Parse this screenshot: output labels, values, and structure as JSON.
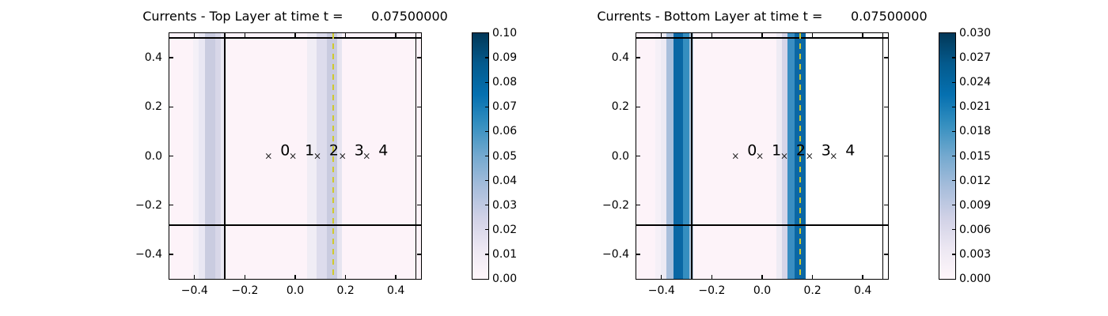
{
  "figure": {
    "background": "#ffffff"
  },
  "colors": {
    "plot_background_low_value": "#fdf3f9",
    "white_region": "#ffffff",
    "frame": "#000000",
    "barrier": "#000000",
    "dashed_line": "#d0ca2c",
    "marker": "#1c1c1c",
    "colormap_stops": [
      "#fff7fb",
      "#ece7f2",
      "#d0d1e6",
      "#a6bddb",
      "#74a9cf",
      "#3690c0",
      "#0570b0",
      "#045a8d",
      "#023858"
    ]
  },
  "layout_hints": {
    "gauge_label_dx": 0.066,
    "gauge_label_dy": 0.02,
    "legend_position": "colorbar-right",
    "grid": "off"
  },
  "chart_data": [
    {
      "type": "heatmap",
      "title": "Currents - Top Layer at time t =       0.07500000",
      "xlim": [
        -0.5,
        0.5
      ],
      "ylim": [
        -0.5,
        0.5
      ],
      "x_tick_values": [
        -0.4,
        -0.2,
        0.0,
        0.2,
        0.4
      ],
      "x_tick_labels": [
        "−0.4",
        "−0.2",
        "0.0",
        "0.2",
        "0.4"
      ],
      "y_tick_values": [
        0.4,
        0.2,
        0.0,
        -0.2,
        -0.4
      ],
      "y_tick_labels": [
        "0.4",
        "0.2",
        "0.0",
        "−0.2",
        "−0.4"
      ],
      "colorbar": {
        "vmin": 0.0,
        "vmax": 0.1,
        "tick_step": 0.01,
        "tick_labels_top_to_bottom": [
          "0.10",
          "0.09",
          "0.08",
          "0.07",
          "0.06",
          "0.05",
          "0.04",
          "0.03",
          "0.02",
          "0.01",
          "0.00"
        ]
      },
      "background_value": 0.0,
      "bands": [
        {
          "description": "current band centered near x=-0.34, peak value ~0.02",
          "stops": [
            [
              -0.405,
              -0.385,
              "#f4f0f7"
            ],
            [
              -0.385,
              -0.358,
              "#e9e7f3"
            ],
            [
              -0.358,
              -0.318,
              "#cacce0"
            ],
            [
              -0.318,
              -0.296,
              "#d8d7e8"
            ],
            [
              -0.296,
              -0.278,
              "#eae8f3"
            ]
          ]
        },
        {
          "description": "current band centered near x=0.14, peak value ~0.022",
          "stops": [
            [
              0.048,
              0.085,
              "#f0edf5"
            ],
            [
              0.085,
              0.125,
              "#dddcec"
            ],
            [
              0.125,
              0.168,
              "#c9cbdf"
            ],
            [
              0.168,
              0.186,
              "#e6e4f0"
            ]
          ]
        }
      ],
      "white_region": null,
      "lines": {
        "vertical_barrier_x": -0.28,
        "vertical_right_x": 0.48,
        "horizontal_barrier_y": -0.28,
        "horizontal_top_y": 0.48,
        "dashed_vertical_x": 0.15
      },
      "gauges": [
        {
          "label": "0",
          "x": -0.106,
          "y": 0.0
        },
        {
          "label": "1",
          "x": -0.009,
          "y": 0.0
        },
        {
          "label": "2",
          "x": 0.088,
          "y": 0.0
        },
        {
          "label": "3",
          "x": 0.188,
          "y": 0.0
        },
        {
          "label": "4",
          "x": 0.284,
          "y": 0.0
        }
      ]
    },
    {
      "type": "heatmap",
      "title": "Currents - Bottom Layer at time t =       0.07500000",
      "xlim": [
        -0.5,
        0.5
      ],
      "ylim": [
        -0.5,
        0.5
      ],
      "x_tick_values": [
        -0.4,
        -0.2,
        0.0,
        0.2,
        0.4
      ],
      "x_tick_labels": [
        "−0.4",
        "−0.2",
        "0.0",
        "0.2",
        "0.4"
      ],
      "y_tick_values": [
        0.4,
        0.2,
        0.0,
        -0.2,
        -0.4
      ],
      "y_tick_labels": [
        "0.4",
        "0.2",
        "0.0",
        "−0.2",
        "−0.4"
      ],
      "colorbar": {
        "vmin": 0.0,
        "vmax": 0.03,
        "tick_step": 0.003,
        "tick_labels_top_to_bottom": [
          "0.030",
          "0.027",
          "0.024",
          "0.021",
          "0.018",
          "0.015",
          "0.012",
          "0.009",
          "0.006",
          "0.003",
          "0.000"
        ]
      },
      "background_value": 0.0,
      "bands": [
        {
          "description": "strong current band centered near x=-0.33, peak value ~0.027",
          "stops": [
            [
              -0.425,
              -0.402,
              "#f5f0f7"
            ],
            [
              -0.402,
              -0.381,
              "#edeaf4"
            ],
            [
              -0.381,
              -0.352,
              "#a9bfdc"
            ],
            [
              -0.352,
              -0.313,
              "#0a67a4"
            ],
            [
              -0.313,
              -0.288,
              "#358ec0"
            ],
            [
              -0.288,
              -0.272,
              "#aec6de"
            ]
          ]
        },
        {
          "description": "strong current band centered near x=0.14, peak value ~0.028",
          "stops": [
            [
              0.058,
              0.078,
              "#eeebf4"
            ],
            [
              0.078,
              0.1,
              "#d6d5e8"
            ],
            [
              0.1,
              0.13,
              "#3a8ec2"
            ],
            [
              0.13,
              0.172,
              "#0b67a4"
            ]
          ]
        }
      ],
      "white_region": [
        0.172,
        0.5
      ],
      "lines": {
        "vertical_barrier_x": -0.28,
        "vertical_right_x": 0.48,
        "horizontal_barrier_y": -0.28,
        "horizontal_top_y": 0.48,
        "dashed_vertical_x": 0.15
      },
      "gauges": [
        {
          "label": "0",
          "x": -0.106,
          "y": 0.0
        },
        {
          "label": "1",
          "x": -0.009,
          "y": 0.0
        },
        {
          "label": "2",
          "x": 0.088,
          "y": 0.0
        },
        {
          "label": "3",
          "x": 0.188,
          "y": 0.0
        },
        {
          "label": "4",
          "x": 0.284,
          "y": 0.0
        }
      ]
    }
  ]
}
